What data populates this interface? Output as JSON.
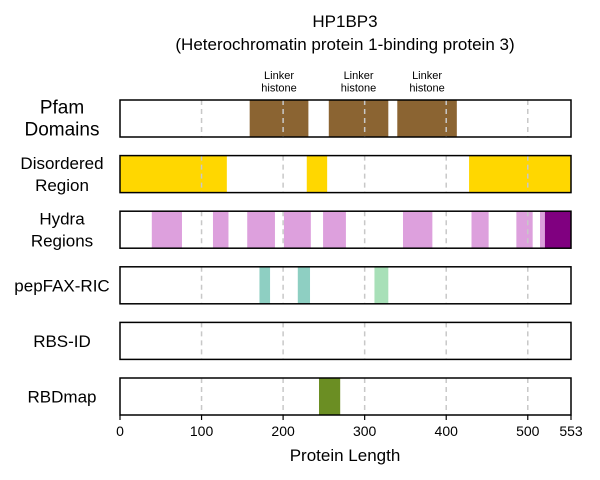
{
  "chart_data": {
    "type": "bar",
    "title": "HP1BP3",
    "subtitle": "(Heterochromatin protein 1-binding protein 3)",
    "xlabel": "Protein Length",
    "xlim": [
      0,
      553
    ],
    "xticks": [
      0,
      100,
      200,
      300,
      400,
      500,
      553
    ],
    "grid": "vertical dashed at 100, 200, 300, 400, 500",
    "tracks": [
      {
        "label_lines": [
          "Pfam",
          "Domains"
        ],
        "features": [
          {
            "start": 159,
            "end": 231,
            "color": "#8B6432",
            "label": [
              "Linker",
              "histone"
            ]
          },
          {
            "start": 256,
            "end": 329,
            "color": "#8B6432",
            "label": [
              "Linker",
              "histone"
            ]
          },
          {
            "start": 340,
            "end": 413,
            "color": "#8B6432",
            "label": [
              "Linker",
              "histone"
            ]
          }
        ]
      },
      {
        "label_lines": [
          "Disordered",
          "Region"
        ],
        "features": [
          {
            "start": 0,
            "end": 131,
            "color": "#FFD700"
          },
          {
            "start": 229,
            "end": 254,
            "color": "#FFD700"
          },
          {
            "start": 428,
            "end": 553,
            "color": "#FFD700"
          }
        ]
      },
      {
        "label_lines": [
          "Hydra",
          "Regions"
        ],
        "features": [
          {
            "start": 39,
            "end": 76,
            "color": "#DDA0DD"
          },
          {
            "start": 114,
            "end": 133,
            "color": "#DDA0DD"
          },
          {
            "start": 156,
            "end": 190,
            "color": "#DDA0DD"
          },
          {
            "start": 201,
            "end": 234,
            "color": "#DDA0DD"
          },
          {
            "start": 249,
            "end": 277,
            "color": "#DDA0DD"
          },
          {
            "start": 347,
            "end": 383,
            "color": "#DDA0DD"
          },
          {
            "start": 431,
            "end": 452,
            "color": "#DDA0DD"
          },
          {
            "start": 486,
            "end": 506,
            "color": "#DDA0DD"
          },
          {
            "start": 515,
            "end": 521,
            "color": "#DDA0DD"
          },
          {
            "start": 521,
            "end": 553,
            "color": "#800080"
          }
        ]
      },
      {
        "label_lines": [
          "pepFAX-RIC"
        ],
        "features": [
          {
            "start": 171,
            "end": 184,
            "color": "#8ECFC2"
          },
          {
            "start": 218,
            "end": 233,
            "color": "#8ECFC2"
          },
          {
            "start": 312,
            "end": 329,
            "color": "#A8E0B8"
          }
        ]
      },
      {
        "label_lines": [
          "RBS-ID"
        ],
        "features": []
      },
      {
        "label_lines": [
          "RBDmap"
        ],
        "features": [
          {
            "start": 244,
            "end": 270,
            "color": "#6B8E23"
          }
        ]
      }
    ]
  }
}
